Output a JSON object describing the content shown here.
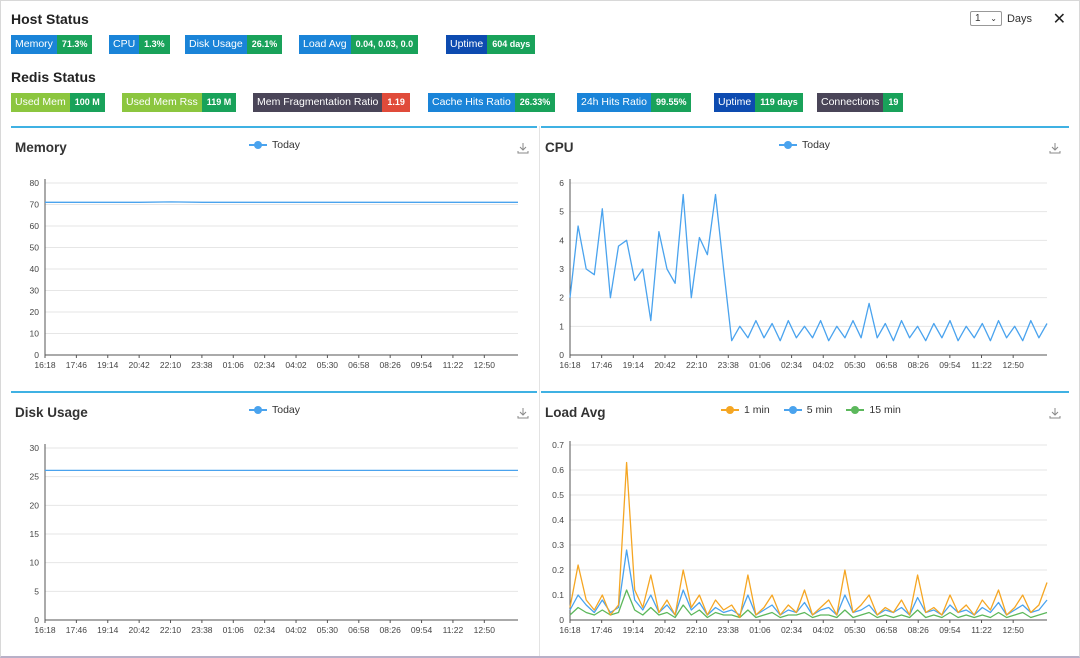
{
  "host_status": {
    "title": "Host Status",
    "badges": [
      {
        "label": "Memory",
        "value": "71.3%"
      },
      {
        "label": "CPU",
        "value": "1.3%"
      },
      {
        "label": "Disk Usage",
        "value": "26.1%"
      },
      {
        "label": "Load Avg",
        "value": "0.04,  0.03,  0.0"
      },
      {
        "label": "Uptime",
        "value": "604 days"
      }
    ]
  },
  "redis_status": {
    "title": "Redis Status",
    "badges": [
      {
        "label": "Used Mem",
        "value": "100 M"
      },
      {
        "label": "Used Mem Rss",
        "value": "119 M"
      },
      {
        "label": "Mem Fragmentation Ratio",
        "value": "1.19"
      },
      {
        "label": "Cache Hits Ratio",
        "value": "26.33%"
      },
      {
        "label": "24h Hits Ratio",
        "value": "99.55%"
      },
      {
        "label": "Uptime",
        "value": "119 days"
      },
      {
        "label": "Connections",
        "value": "19"
      }
    ]
  },
  "range": {
    "value": "1",
    "unit": "Days"
  },
  "icons": {
    "close": "close-icon",
    "download": "download-icon",
    "dropdown": "chevron-down-icon"
  },
  "colors": {
    "host_label": "#1a84d8",
    "uptime_label": "#0d4bb0",
    "value_green": "#19a25a",
    "redis_mem": "#8cc63f",
    "redis_frag_label": "#4a4558",
    "redis_frag_value": "#e04b3a",
    "accent_top": "#3fb1e3",
    "series_today": "#4aa3ee",
    "load_1": "#f5a623",
    "load_5": "#4aa3ee",
    "load_15": "#5cb85c"
  },
  "time_ticks": [
    "16:18",
    "17:46",
    "19:14",
    "20:42",
    "22:10",
    "23:38",
    "01:06",
    "02:34",
    "04:02",
    "05:30",
    "06:58",
    "08:26",
    "09:54",
    "11:22",
    "12:50"
  ],
  "chart_data": [
    {
      "type": "line",
      "title": "Memory",
      "series": [
        {
          "name": "Today",
          "description": "flat line about 71",
          "values": [
            71,
            71,
            71,
            71,
            71.2,
            71,
            71,
            71,
            71,
            71,
            71,
            71,
            71,
            71,
            71,
            71
          ]
        }
      ],
      "ylim": [
        0,
        80
      ],
      "yticks": [
        0,
        10,
        20,
        30,
        40,
        50,
        60,
        70,
        80
      ]
    },
    {
      "type": "line",
      "title": "CPU",
      "series": [
        {
          "name": "Today",
          "values": [
            2,
            4.5,
            3,
            2.8,
            5.1,
            2,
            3.8,
            4,
            2.6,
            3,
            1.2,
            4.3,
            3,
            2.5,
            5.6,
            2,
            4.1,
            3.5,
            5.6,
            3,
            0.5,
            1,
            0.6,
            1.2,
            0.6,
            1.1,
            0.5,
            1.2,
            0.6,
            1,
            0.6,
            1.2,
            0.5,
            1,
            0.6,
            1.2,
            0.6,
            1.8,
            0.6,
            1.1,
            0.5,
            1.2,
            0.6,
            1,
            0.5,
            1.1,
            0.6,
            1.2,
            0.5,
            1,
            0.6,
            1.1,
            0.5,
            1.2,
            0.6,
            1,
            0.5,
            1.2,
            0.6,
            1.1
          ]
        }
      ],
      "ylim": [
        0,
        6
      ],
      "yticks": [
        0,
        1,
        2,
        3,
        4,
        5,
        6
      ]
    },
    {
      "type": "line",
      "title": "Disk Usage",
      "series": [
        {
          "name": "Today",
          "values": [
            26.1,
            26.1,
            26.1,
            26.1,
            26.1,
            26.1,
            26.1,
            26.1,
            26.1,
            26.1,
            26.1,
            26.1,
            26.1,
            26.1,
            26.1,
            26.1
          ]
        }
      ],
      "ylim": [
        0,
        30
      ],
      "yticks": [
        0,
        5,
        10,
        15,
        20,
        25,
        30
      ]
    },
    {
      "type": "line",
      "title": "Load Avg",
      "series": [
        {
          "name": "1 min",
          "values": [
            0.05,
            0.22,
            0.08,
            0.04,
            0.1,
            0.02,
            0.06,
            0.63,
            0.12,
            0.05,
            0.18,
            0.03,
            0.08,
            0.02,
            0.2,
            0.05,
            0.1,
            0.02,
            0.08,
            0.04,
            0.06,
            0.01,
            0.18,
            0.02,
            0.05,
            0.1,
            0.02,
            0.06,
            0.03,
            0.12,
            0.02,
            0.05,
            0.08,
            0.02,
            0.2,
            0.03,
            0.06,
            0.1,
            0.02,
            0.05,
            0.03,
            0.08,
            0.02,
            0.18,
            0.03,
            0.05,
            0.02,
            0.1,
            0.03,
            0.06,
            0.02,
            0.08,
            0.04,
            0.12,
            0.02,
            0.05,
            0.1,
            0.03,
            0.06,
            0.15
          ]
        },
        {
          "name": "5 min",
          "values": [
            0.04,
            0.1,
            0.06,
            0.03,
            0.08,
            0.03,
            0.05,
            0.28,
            0.08,
            0.04,
            0.1,
            0.03,
            0.06,
            0.02,
            0.12,
            0.04,
            0.07,
            0.02,
            0.05,
            0.03,
            0.04,
            0.02,
            0.1,
            0.02,
            0.04,
            0.06,
            0.02,
            0.04,
            0.03,
            0.07,
            0.02,
            0.04,
            0.05,
            0.02,
            0.1,
            0.03,
            0.04,
            0.06,
            0.02,
            0.04,
            0.03,
            0.05,
            0.02,
            0.09,
            0.03,
            0.04,
            0.02,
            0.06,
            0.03,
            0.04,
            0.02,
            0.05,
            0.03,
            0.07,
            0.02,
            0.04,
            0.06,
            0.03,
            0.04,
            0.08
          ]
        },
        {
          "name": "15 min",
          "values": [
            0.02,
            0.05,
            0.03,
            0.02,
            0.04,
            0.02,
            0.03,
            0.12,
            0.04,
            0.02,
            0.05,
            0.02,
            0.03,
            0.01,
            0.06,
            0.02,
            0.04,
            0.01,
            0.03,
            0.02,
            0.02,
            0.01,
            0.04,
            0.01,
            0.02,
            0.03,
            0.01,
            0.02,
            0.02,
            0.03,
            0.01,
            0.02,
            0.02,
            0.01,
            0.04,
            0.01,
            0.02,
            0.03,
            0.01,
            0.02,
            0.01,
            0.02,
            0.01,
            0.04,
            0.01,
            0.02,
            0.01,
            0.03,
            0.01,
            0.02,
            0.01,
            0.02,
            0.01,
            0.03,
            0.01,
            0.02,
            0.03,
            0.01,
            0.02,
            0.03
          ]
        }
      ],
      "ylim": [
        0,
        0.7
      ],
      "yticks": [
        0,
        0.1,
        0.2,
        0.3,
        0.4,
        0.5,
        0.6,
        0.7
      ]
    }
  ]
}
